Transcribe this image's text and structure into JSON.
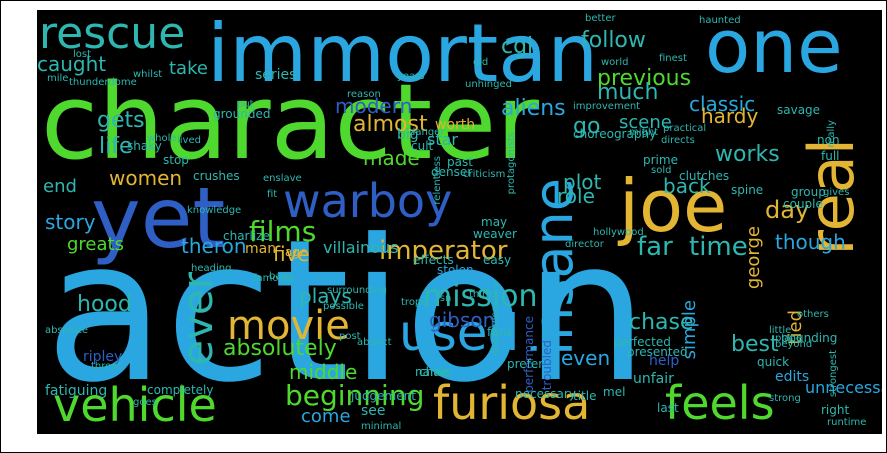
{
  "colors": {
    "background": "#000000",
    "border": "#000000",
    "palette": [
      "#2aa7e0",
      "#4fd82e",
      "#e2b534",
      "#2f5fc4",
      "#2db7b0",
      "#7bd84c"
    ]
  },
  "words": [
    {
      "text": "action",
      "color": "#2aa7e0"
    },
    {
      "text": "character",
      "color": "#4fd82e"
    },
    {
      "text": "immortan",
      "color": "#2aa7e0"
    },
    {
      "text": "one",
      "color": "#2aa7e0"
    },
    {
      "text": "yet",
      "color": "#2f5fc4"
    },
    {
      "text": "joe",
      "color": "#e2b534"
    },
    {
      "text": "rescue",
      "color": "#2db7b0"
    },
    {
      "text": "real",
      "color": "#e2b534"
    },
    {
      "text": "warboy",
      "color": "#2f5fc4"
    },
    {
      "text": "insane",
      "color": "#2aa7e0"
    },
    {
      "text": "vehicle",
      "color": "#4fd82e"
    },
    {
      "text": "furiosa",
      "color": "#e2b534"
    },
    {
      "text": "feels",
      "color": "#4fd82e"
    },
    {
      "text": "movie",
      "color": "#e2b534"
    },
    {
      "text": "used",
      "color": "#2aa7e0"
    },
    {
      "text": "ever",
      "color": "#2db7b0"
    },
    {
      "text": "imperator",
      "color": "#e2b534"
    },
    {
      "text": "mission",
      "color": "#2db7b0"
    },
    {
      "text": "beginning",
      "color": "#4fd82e"
    },
    {
      "text": "far",
      "color": "#2db7b0"
    },
    {
      "text": "time",
      "color": "#2db7b0"
    },
    {
      "text": "though",
      "color": "#2aa7e0"
    },
    {
      "text": "films",
      "color": "#4fd82e"
    },
    {
      "text": "theron",
      "color": "#2aa7e0"
    },
    {
      "text": "story",
      "color": "#2aa7e0"
    },
    {
      "text": "role",
      "color": "#2db7b0"
    },
    {
      "text": "plot",
      "color": "#2db7b0"
    },
    {
      "text": "works",
      "color": "#2db7b0"
    },
    {
      "text": "chase",
      "color": "#2db7b0"
    },
    {
      "text": "best",
      "color": "#2db7b0"
    },
    {
      "text": "gibson",
      "color": "#2f5fc4"
    },
    {
      "text": "absolutely",
      "color": "#4fd82e"
    },
    {
      "text": "middle",
      "color": "#4fd82e"
    },
    {
      "text": "plays",
      "color": "#2db7b0"
    },
    {
      "text": "hood",
      "color": "#2db7b0"
    },
    {
      "text": "life",
      "color": "#2db7b0"
    },
    {
      "text": "gets",
      "color": "#2db7b0"
    },
    {
      "text": "caught",
      "color": "#2db7b0"
    },
    {
      "text": "follow",
      "color": "#2db7b0"
    },
    {
      "text": "previous",
      "color": "#4fd82e"
    },
    {
      "text": "much",
      "color": "#2db7b0"
    },
    {
      "text": "scene",
      "color": "#2db7b0"
    },
    {
      "text": "classic",
      "color": "#2aa7e0"
    },
    {
      "text": "almost",
      "color": "#e2b534"
    },
    {
      "text": "made",
      "color": "#4fd82e"
    },
    {
      "text": "go",
      "color": "#2db7b0"
    },
    {
      "text": "day",
      "color": "#e2b534"
    },
    {
      "text": "back",
      "color": "#2db7b0"
    },
    {
      "text": "george",
      "color": "#e2b534"
    },
    {
      "text": "end",
      "color": "#2db7b0"
    },
    {
      "text": "women",
      "color": "#e2b534"
    },
    {
      "text": "greats",
      "color": "#4fd82e"
    },
    {
      "text": "five",
      "color": "#e2b534"
    },
    {
      "text": "modern",
      "color": "#2f5fc4"
    },
    {
      "text": "aliens",
      "color": "#2aa7e0"
    },
    {
      "text": "take",
      "color": "#2db7b0"
    },
    {
      "text": "cgi",
      "color": "#2db7b0"
    },
    {
      "text": "series",
      "color": "#2db7b0"
    },
    {
      "text": "hardy",
      "color": "#e2b534"
    },
    {
      "text": "come",
      "color": "#2aa7e0"
    },
    {
      "text": "even",
      "color": "#2aa7e0"
    },
    {
      "text": "simple",
      "color": "#2aa7e0"
    },
    {
      "text": "villainous",
      "color": "#2db7b0"
    },
    {
      "text": "man",
      "color": "#e2b534"
    },
    {
      "text": "age",
      "color": "#e2b534"
    },
    {
      "text": "star",
      "color": "#2db7b0"
    },
    {
      "text": "ripley",
      "color": "#2f5fc4"
    },
    {
      "text": "fatiguing",
      "color": "#2db7b0"
    },
    {
      "text": "see",
      "color": "#2db7b0"
    },
    {
      "text": "judgement",
      "color": "#2db7b0"
    },
    {
      "text": "edits",
      "color": "#2aa7e0"
    },
    {
      "text": "unnecessary",
      "color": "#2aa7e0"
    },
    {
      "text": "tied",
      "color": "#e2b534"
    },
    {
      "text": "quick",
      "color": "#2db7b0"
    },
    {
      "text": "chain",
      "color": "#2db7b0"
    },
    {
      "text": "performance",
      "color": "#2f5fc4"
    },
    {
      "text": "presented",
      "color": "#2db7b0"
    },
    {
      "text": "troubled",
      "color": "#2f5fc4"
    },
    {
      "text": "unfair",
      "color": "#2db7b0"
    },
    {
      "text": "pounding",
      "color": "#2db7b0"
    },
    {
      "text": "effects",
      "color": "#2db7b0"
    },
    {
      "text": "stolen",
      "color": "#2aa7e0"
    },
    {
      "text": "help",
      "color": "#2f5fc4"
    },
    {
      "text": "necessary",
      "color": "#2db7b0"
    },
    {
      "text": "title",
      "color": "#2db7b0"
    },
    {
      "text": "right",
      "color": "#2db7b0"
    },
    {
      "text": "strongest",
      "color": "#2db7b0"
    },
    {
      "text": "beyond",
      "color": "#2db7b0"
    },
    {
      "text": "place",
      "color": "#2db7b0"
    },
    {
      "text": "little",
      "color": "#2db7b0"
    },
    {
      "text": "others",
      "color": "#2db7b0"
    },
    {
      "text": "worth",
      "color": "#e2b534"
    },
    {
      "text": "past",
      "color": "#2db7b0"
    },
    {
      "text": "may",
      "color": "#2db7b0"
    },
    {
      "text": "weaver",
      "color": "#2db7b0"
    },
    {
      "text": "criticism",
      "color": "#2db7b0"
    },
    {
      "text": "denser",
      "color": "#2db7b0"
    },
    {
      "text": "relentless",
      "color": "#2db7b0"
    },
    {
      "text": "big",
      "color": "#2db7b0"
    },
    {
      "text": "cult",
      "color": "#2db7b0"
    },
    {
      "text": "danger",
      "color": "#2db7b0"
    },
    {
      "text": "choreography",
      "color": "#2db7b0"
    },
    {
      "text": "improvement",
      "color": "#2db7b0"
    },
    {
      "text": "might",
      "color": "#2db7b0"
    },
    {
      "text": "directs",
      "color": "#2db7b0"
    },
    {
      "text": "practical",
      "color": "#2db7b0"
    },
    {
      "text": "prime",
      "color": "#2db7b0"
    },
    {
      "text": "clutches",
      "color": "#2db7b0"
    },
    {
      "text": "savage",
      "color": "#2db7b0"
    },
    {
      "text": "non",
      "color": "#2db7b0"
    },
    {
      "text": "really",
      "color": "#2db7b0"
    },
    {
      "text": "full",
      "color": "#2db7b0"
    },
    {
      "text": "spine",
      "color": "#2db7b0"
    },
    {
      "text": "group",
      "color": "#2db7b0"
    },
    {
      "text": "couple",
      "color": "#2db7b0"
    },
    {
      "text": "gives",
      "color": "#2db7b0"
    },
    {
      "text": "protagonists",
      "color": "#2db7b0"
    },
    {
      "text": "grounded",
      "color": "#2db7b0"
    },
    {
      "text": "shaky",
      "color": "#2db7b0"
    },
    {
      "text": "stop",
      "color": "#2db7b0"
    },
    {
      "text": "crushes",
      "color": "#2db7b0"
    },
    {
      "text": "enslave",
      "color": "#2db7b0"
    },
    {
      "text": "charlize",
      "color": "#2db7b0"
    },
    {
      "text": "famous",
      "color": "#2db7b0"
    },
    {
      "text": "surrounding",
      "color": "#2db7b0"
    },
    {
      "text": "trope",
      "color": "#2db7b0"
    },
    {
      "text": "possible",
      "color": "#2db7b0"
    },
    {
      "text": "abduct",
      "color": "#2db7b0"
    },
    {
      "text": "absolute",
      "color": "#2db7b0"
    },
    {
      "text": "threat",
      "color": "#2db7b0"
    },
    {
      "text": "goes",
      "color": "#2db7b0"
    },
    {
      "text": "completely",
      "color": "#2db7b0"
    },
    {
      "text": "name",
      "color": "#2db7b0"
    },
    {
      "text": "fans",
      "color": "#2db7b0"
    },
    {
      "text": "prefer",
      "color": "#2db7b0"
    },
    {
      "text": "disservice",
      "color": "#2db7b0"
    },
    {
      "text": "perfected",
      "color": "#2db7b0"
    },
    {
      "text": "mel",
      "color": "#2db7b0"
    },
    {
      "text": "last",
      "color": "#2db7b0"
    },
    {
      "text": "minimal",
      "color": "#2db7b0"
    },
    {
      "text": "strong",
      "color": "#2db7b0"
    },
    {
      "text": "runtime",
      "color": "#2db7b0"
    },
    {
      "text": "hollywood",
      "color": "#2db7b0"
    },
    {
      "text": "director",
      "color": "#2db7b0"
    },
    {
      "text": "easy",
      "color": "#2db7b0"
    },
    {
      "text": "mile",
      "color": "#2db7b0"
    },
    {
      "text": "thunderdome",
      "color": "#2db7b0"
    },
    {
      "text": "whilst",
      "color": "#2db7b0"
    },
    {
      "text": "lost",
      "color": "#2db7b0"
    },
    {
      "text": "years",
      "color": "#2db7b0"
    },
    {
      "text": "old",
      "color": "#2db7b0"
    },
    {
      "text": "better",
      "color": "#2db7b0"
    },
    {
      "text": "finest",
      "color": "#2db7b0"
    },
    {
      "text": "world",
      "color": "#2db7b0"
    },
    {
      "text": "haunted",
      "color": "#2db7b0"
    },
    {
      "text": "sold",
      "color": "#2db7b0"
    },
    {
      "text": "unhinged",
      "color": "#2db7b0"
    },
    {
      "text": "reason",
      "color": "#2db7b0"
    },
    {
      "text": "put",
      "color": "#2db7b0"
    },
    {
      "text": "heading",
      "color": "#2db7b0"
    },
    {
      "text": "knowledge",
      "color": "#2db7b0"
    },
    {
      "text": "bang",
      "color": "#2db7b0"
    },
    {
      "text": "fit",
      "color": "#2db7b0"
    },
    {
      "text": "whole",
      "color": "#2db7b0"
    },
    {
      "text": "lived",
      "color": "#2db7b0"
    },
    {
      "text": "isn",
      "color": "#2db7b0"
    },
    {
      "text": "think",
      "color": "#2db7b0"
    },
    {
      "text": "post",
      "color": "#2db7b0"
    }
  ]
}
